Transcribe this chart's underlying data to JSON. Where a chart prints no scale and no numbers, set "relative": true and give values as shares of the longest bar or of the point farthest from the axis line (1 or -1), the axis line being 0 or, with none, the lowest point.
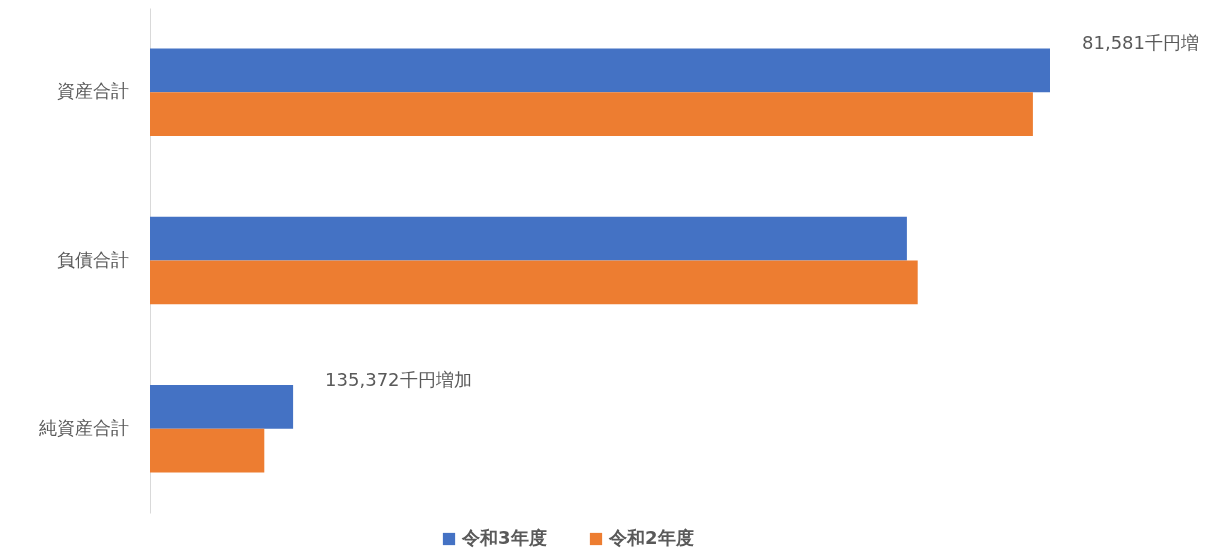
{
  "chart_data": {
    "type": "bar",
    "orientation": "horizontal",
    "relative": true,
    "categories": [
      "資産合計",
      "負債合計",
      "純資産合計"
    ],
    "series": [
      {
        "name": "令和3年度",
        "color": "#4472c4",
        "values": [
          1,
          0.841,
          0.159
        ]
      },
      {
        "name": "令和2年度",
        "color": "#ed7d31",
        "values": [
          0.981,
          0.853,
          0.127
        ]
      }
    ],
    "annotations": [
      {
        "text": "81,581千円増",
        "x": 1,
        "y": "資産合計"
      },
      {
        "text": "135,372千円増加",
        "x": 0.159,
        "y": "純資産合計"
      }
    ],
    "legend": "bottom"
  }
}
